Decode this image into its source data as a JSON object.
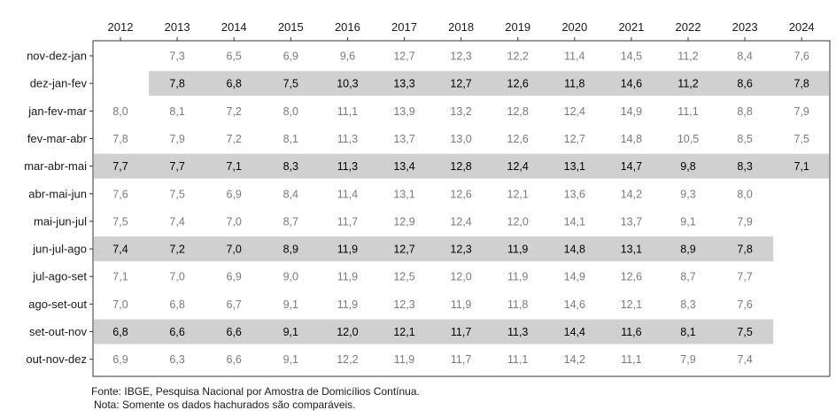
{
  "chart_data": {
    "type": "table",
    "title": "",
    "xlabel": "",
    "ylabel": "",
    "years": [
      "2012",
      "2013",
      "2014",
      "2015",
      "2016",
      "2017",
      "2018",
      "2019",
      "2020",
      "2021",
      "2022",
      "2023",
      "2024"
    ],
    "rows": [
      {
        "label": "nov-dez-jan",
        "highlighted": false,
        "values": [
          null,
          "7,3",
          "6,5",
          "6,9",
          "9,6",
          "12,7",
          "12,3",
          "12,2",
          "11,4",
          "14,5",
          "11,2",
          "8,4",
          "7,6"
        ]
      },
      {
        "label": "dez-jan-fev",
        "highlighted": true,
        "values": [
          null,
          "7,8",
          "6,8",
          "7,5",
          "10,3",
          "13,3",
          "12,7",
          "12,6",
          "11,8",
          "14,6",
          "11,2",
          "8,6",
          "7,8"
        ]
      },
      {
        "label": "jan-fev-mar",
        "highlighted": false,
        "values": [
          "8,0",
          "8,1",
          "7,2",
          "8,0",
          "11,1",
          "13,9",
          "13,2",
          "12,8",
          "12,4",
          "14,9",
          "11,1",
          "8,8",
          "7,9"
        ]
      },
      {
        "label": "fev-mar-abr",
        "highlighted": false,
        "values": [
          "7,8",
          "7,9",
          "7,2",
          "8,1",
          "11,3",
          "13,7",
          "13,0",
          "12,6",
          "12,7",
          "14,8",
          "10,5",
          "8,5",
          "7,5"
        ]
      },
      {
        "label": "mar-abr-mai",
        "highlighted": true,
        "values": [
          "7,7",
          "7,7",
          "7,1",
          "8,3",
          "11,3",
          "13,4",
          "12,8",
          "12,4",
          "13,1",
          "14,7",
          "9,8",
          "8,3",
          "7,1"
        ]
      },
      {
        "label": "abr-mai-jun",
        "highlighted": false,
        "values": [
          "7,6",
          "7,5",
          "6,9",
          "8,4",
          "11,4",
          "13,1",
          "12,6",
          "12,1",
          "13,6",
          "14,2",
          "9,3",
          "8,0",
          null
        ]
      },
      {
        "label": "mai-jun-jul",
        "highlighted": false,
        "values": [
          "7,5",
          "7,4",
          "7,0",
          "8,7",
          "11,7",
          "12,9",
          "12,4",
          "12,0",
          "14,1",
          "13,7",
          "9,1",
          "7,9",
          null
        ]
      },
      {
        "label": "jun-jul-ago",
        "highlighted": true,
        "values": [
          "7,4",
          "7,2",
          "7,0",
          "8,9",
          "11,9",
          "12,7",
          "12,3",
          "11,9",
          "14,8",
          "13,1",
          "8,9",
          "7,8",
          null
        ]
      },
      {
        "label": "jul-ago-set",
        "highlighted": false,
        "values": [
          "7,1",
          "7,0",
          "6,9",
          "9,0",
          "11,9",
          "12,5",
          "12,0",
          "11,9",
          "14,9",
          "12,6",
          "8,7",
          "7,7",
          null
        ]
      },
      {
        "label": "ago-set-out",
        "highlighted": false,
        "values": [
          "7,0",
          "6,8",
          "6,7",
          "9,1",
          "11,9",
          "12,3",
          "11,9",
          "11,8",
          "14,6",
          "12,1",
          "8,3",
          "7,6",
          null
        ]
      },
      {
        "label": "set-out-nov",
        "highlighted": true,
        "values": [
          "6,8",
          "6,6",
          "6,6",
          "9,1",
          "12,0",
          "12,1",
          "11,7",
          "11,3",
          "14,4",
          "11,6",
          "8,1",
          "7,5",
          null
        ]
      },
      {
        "label": "out-nov-dez",
        "highlighted": false,
        "values": [
          "6,9",
          "6,3",
          "6,6",
          "9,1",
          "12,2",
          "11,9",
          "11,7",
          "11,1",
          "14,2",
          "11,1",
          "7,9",
          "7,4",
          null
        ]
      }
    ],
    "colors": {
      "highlight_band": "#d0d0d0",
      "highlighted_text": "#000000",
      "normal_text": "#7a7a7a",
      "label_text": "#1a1a1a",
      "frame": "#333333"
    }
  },
  "footer": {
    "source": "Fonte: IBGE, Pesquisa Nacional por Amostra de Domicílios Contínua.",
    "note": "Nota: Somente os dados hachurados são comparáveis."
  }
}
